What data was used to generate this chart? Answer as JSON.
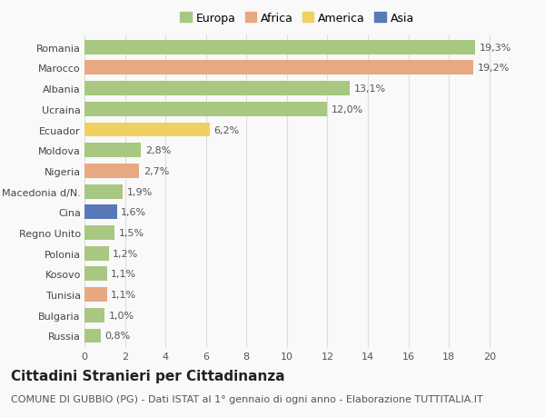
{
  "countries": [
    "Romania",
    "Marocco",
    "Albania",
    "Ucraina",
    "Ecuador",
    "Moldova",
    "Nigeria",
    "Macedonia d/N.",
    "Cina",
    "Regno Unito",
    "Polonia",
    "Kosovo",
    "Tunisia",
    "Bulgaria",
    "Russia"
  ],
  "values": [
    19.3,
    19.2,
    13.1,
    12.0,
    6.2,
    2.8,
    2.7,
    1.9,
    1.6,
    1.5,
    1.2,
    1.1,
    1.1,
    1.0,
    0.8
  ],
  "labels": [
    "19,3%",
    "19,2%",
    "13,1%",
    "12,0%",
    "6,2%",
    "2,8%",
    "2,7%",
    "1,9%",
    "1,6%",
    "1,5%",
    "1,2%",
    "1,1%",
    "1,1%",
    "1,0%",
    "0,8%"
  ],
  "continents": [
    "Europa",
    "Africa",
    "Europa",
    "Europa",
    "America",
    "Europa",
    "Africa",
    "Europa",
    "Asia",
    "Europa",
    "Europa",
    "Europa",
    "Africa",
    "Europa",
    "Europa"
  ],
  "colors": {
    "Europa": "#a8c882",
    "Africa": "#e8a882",
    "America": "#f0d060",
    "Asia": "#5878b8"
  },
  "legend_order": [
    "Europa",
    "Africa",
    "America",
    "Asia"
  ],
  "xlim": [
    0,
    21
  ],
  "xticks": [
    0,
    2,
    4,
    6,
    8,
    10,
    12,
    14,
    16,
    18,
    20
  ],
  "title": "Cittadini Stranieri per Cittadinanza",
  "subtitle": "COMUNE DI GUBBIO (PG) - Dati ISTAT al 1° gennaio di ogni anno - Elaborazione TUTTITALIA.IT",
  "background_color": "#f9f9f9",
  "grid_color": "#dddddd",
  "bar_height": 0.7,
  "title_fontsize": 11,
  "subtitle_fontsize": 8,
  "label_fontsize": 8,
  "tick_fontsize": 8,
  "legend_fontsize": 9
}
